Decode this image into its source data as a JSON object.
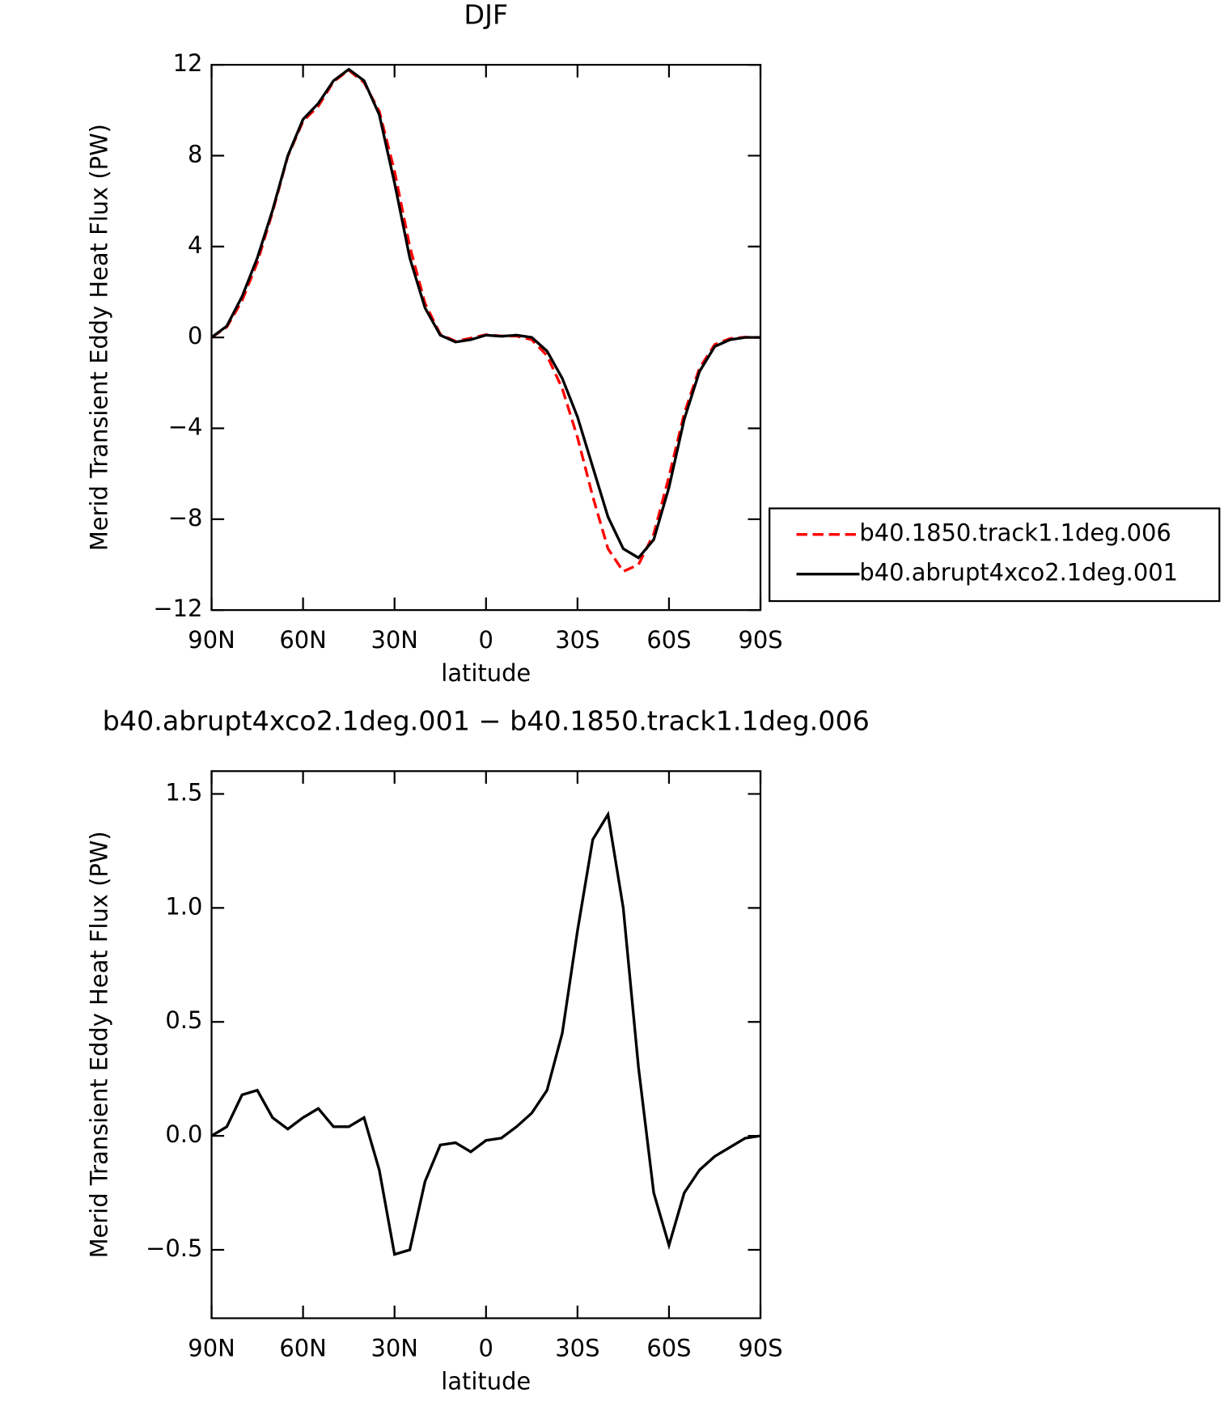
{
  "chart_data": [
    {
      "type": "line",
      "title": "DJF",
      "xlabel": "latitude",
      "ylabel": "Merid Transient Eddy Heat Flux (PW)",
      "x": [
        90,
        85,
        80,
        75,
        70,
        65,
        60,
        55,
        50,
        45,
        40,
        35,
        30,
        25,
        20,
        15,
        10,
        5,
        0,
        -5,
        -10,
        -15,
        -20,
        -25,
        -30,
        -35,
        -40,
        -45,
        -50,
        -55,
        -60,
        -65,
        -70,
        -75,
        -80,
        -85,
        -90
      ],
      "series": [
        {
          "name": "b40.1850.track1.1deg.006",
          "color": "#ff0000",
          "dashed": true,
          "values": [
            0,
            0.46,
            1.62,
            3.3,
            5.52,
            7.97,
            9.52,
            10.18,
            11.26,
            11.76,
            11.22,
            9.95,
            7.32,
            4.0,
            1.5,
            0.14,
            -0.17,
            -0.03,
            0.12,
            0.06,
            0.06,
            -0.1,
            -0.8,
            -2.25,
            -4.4,
            -7.0,
            -9.3,
            -10.3,
            -10.0,
            -8.65,
            -6.12,
            -3.35,
            -1.35,
            -0.31,
            -0.05,
            0.01,
            0
          ]
        },
        {
          "name": "b40.abrupt4xco2.1deg.001",
          "color": "#000000",
          "dashed": false,
          "values": [
            0,
            0.5,
            1.8,
            3.5,
            5.6,
            8.0,
            9.6,
            10.3,
            11.3,
            11.8,
            11.3,
            9.8,
            6.8,
            3.5,
            1.3,
            0.1,
            -0.2,
            -0.1,
            0.1,
            0.05,
            0.1,
            0.0,
            -0.6,
            -1.8,
            -3.5,
            -5.7,
            -7.9,
            -9.3,
            -9.7,
            -8.9,
            -6.6,
            -3.6,
            -1.5,
            -0.4,
            -0.1,
            0,
            0
          ]
        }
      ],
      "xlim": [
        90,
        -90
      ],
      "xticks": [
        {
          "value": 90,
          "label": "90N"
        },
        {
          "value": 60,
          "label": "60N"
        },
        {
          "value": 30,
          "label": "30N"
        },
        0,
        {
          "value": -30,
          "label": "30S"
        },
        {
          "value": -60,
          "label": "60S"
        },
        {
          "value": -90,
          "label": "90S"
        }
      ],
      "ylim": [
        -12,
        12
      ],
      "yticks": [
        {
          "value": -12,
          "label": "−12"
        },
        {
          "value": -8,
          "label": "−8"
        },
        {
          "value": -4,
          "label": "−4"
        },
        0,
        4,
        8,
        12
      ],
      "legend": "right"
    },
    {
      "type": "line",
      "title": "b40.abrupt4xco2.1deg.001 − b40.1850.track1.1deg.006",
      "xlabel": "latitude",
      "ylabel": "Merid Transient Eddy Heat Flux (PW)",
      "x": [
        90,
        85,
        80,
        75,
        70,
        65,
        60,
        55,
        50,
        45,
        40,
        35,
        30,
        25,
        20,
        15,
        10,
        5,
        0,
        -5,
        -10,
        -15,
        -20,
        -25,
        -30,
        -35,
        -40,
        -45,
        -50,
        -55,
        -60,
        -65,
        -70,
        -75,
        -80,
        -85,
        -90
      ],
      "series": [
        {
          "color": "#000000",
          "dashed": false,
          "values": [
            0,
            0.04,
            0.18,
            0.2,
            0.08,
            0.03,
            0.08,
            0.12,
            0.04,
            0.04,
            0.08,
            -0.15,
            -0.52,
            -0.5,
            -0.2,
            -0.04,
            -0.03,
            -0.07,
            -0.02,
            -0.01,
            0.04,
            0.1,
            0.2,
            0.45,
            0.9,
            1.3,
            1.41,
            1.0,
            0.3,
            -0.25,
            -0.48,
            -0.25,
            -0.15,
            -0.09,
            -0.05,
            -0.01,
            0
          ]
        }
      ],
      "xlim": [
        90,
        -90
      ],
      "xticks": [
        {
          "value": 90,
          "label": "90N"
        },
        {
          "value": 60,
          "label": "60N"
        },
        {
          "value": 30,
          "label": "30N"
        },
        0,
        {
          "value": -30,
          "label": "30S"
        },
        {
          "value": -60,
          "label": "60S"
        },
        {
          "value": -90,
          "label": "90S"
        }
      ],
      "ylim": [
        -0.8,
        1.6
      ],
      "yticks": [
        {
          "value": -0.5,
          "label": "−0.5"
        },
        {
          "value": 0,
          "label": "0.0"
        },
        {
          "value": 0.5,
          "label": "0.5"
        },
        {
          "value": 1,
          "label": "1.0"
        },
        {
          "value": 1.5,
          "label": "1.5"
        }
      ]
    }
  ]
}
